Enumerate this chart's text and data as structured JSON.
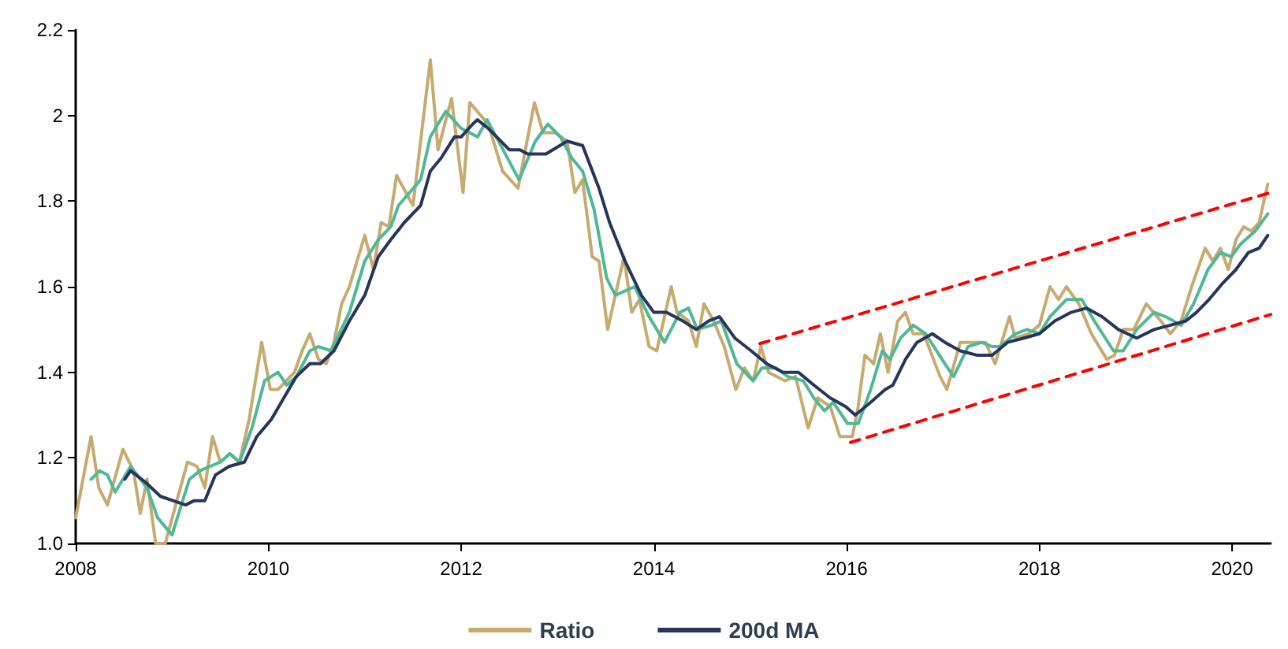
{
  "chart_data": {
    "type": "line",
    "xlim": [
      2008,
      2020.4
    ],
    "xticks": [
      2008,
      2010,
      2012,
      2014,
      2016,
      2018,
      2020
    ],
    "ylim": [
      1.0,
      2.2
    ],
    "yticks": [
      {
        "value": 1.0,
        "label": "1.0"
      },
      1.2,
      1.4,
      1.6,
      1.8,
      2,
      {
        "value": 2.2,
        "label": "2.2"
      }
    ],
    "grid": false,
    "legend": "bottom",
    "marker": "none",
    "series": [
      {
        "name": "Ratio",
        "color": "#c8aa6e",
        "x": [
          2008.0,
          2008.16,
          2008.24,
          2008.33,
          2008.49,
          2008.6,
          2008.67,
          2008.74,
          2008.83,
          2008.93,
          2009.05,
          2009.16,
          2009.26,
          2009.34,
          2009.42,
          2009.5,
          2009.6,
          2009.7,
          2009.8,
          2009.93,
          2010.02,
          2010.1,
          2010.27,
          2010.35,
          2010.43,
          2010.52,
          2010.6,
          2010.68,
          2010.76,
          2010.84,
          2011.0,
          2011.09,
          2011.17,
          2011.25,
          2011.33,
          2011.5,
          2011.68,
          2011.76,
          2011.9,
          2012.02,
          2012.09,
          2012.28,
          2012.43,
          2012.59,
          2012.76,
          2012.85,
          2012.97,
          2013.1,
          2013.18,
          2013.26,
          2013.36,
          2013.43,
          2013.52,
          2013.59,
          2013.69,
          2013.77,
          2013.85,
          2013.95,
          2014.03,
          2014.18,
          2014.24,
          2014.36,
          2014.44,
          2014.52,
          2014.62,
          2014.73,
          2014.85,
          2014.94,
          2015.03,
          2015.11,
          2015.19,
          2015.36,
          2015.47,
          2015.6,
          2015.7,
          2015.83,
          2015.93,
          2016.06,
          2016.12,
          2016.19,
          2016.28,
          2016.35,
          2016.43,
          2016.53,
          2016.61,
          2016.69,
          2016.8,
          2016.97,
          2017.04,
          2017.18,
          2017.35,
          2017.44,
          2017.54,
          2017.69,
          2017.75,
          2017.89,
          2018.0,
          2018.11,
          2018.2,
          2018.28,
          2018.41,
          2018.54,
          2018.7,
          2018.78,
          2018.87,
          2018.98,
          2019.11,
          2019.26,
          2019.36,
          2019.47,
          2019.58,
          2019.72,
          2019.8,
          2019.88,
          2019.96,
          2020.04,
          2020.12,
          2020.2,
          2020.28,
          2020.37
        ],
        "values": [
          1.06,
          1.25,
          1.13,
          1.09,
          1.22,
          1.17,
          1.07,
          1.15,
          1.0,
          1.0,
          1.1,
          1.19,
          1.18,
          1.13,
          1.25,
          1.19,
          1.21,
          1.19,
          1.29,
          1.47,
          1.36,
          1.36,
          1.4,
          1.45,
          1.49,
          1.43,
          1.42,
          1.47,
          1.56,
          1.6,
          1.72,
          1.64,
          1.75,
          1.74,
          1.86,
          1.79,
          2.13,
          1.92,
          2.04,
          1.82,
          2.03,
          1.98,
          1.87,
          1.83,
          2.03,
          1.96,
          1.96,
          1.94,
          1.82,
          1.85,
          1.67,
          1.66,
          1.5,
          1.57,
          1.67,
          1.54,
          1.57,
          1.46,
          1.45,
          1.6,
          1.54,
          1.52,
          1.46,
          1.56,
          1.52,
          1.46,
          1.36,
          1.41,
          1.38,
          1.46,
          1.4,
          1.38,
          1.39,
          1.27,
          1.34,
          1.32,
          1.25,
          1.25,
          1.32,
          1.44,
          1.42,
          1.49,
          1.4,
          1.52,
          1.54,
          1.49,
          1.49,
          1.39,
          1.36,
          1.47,
          1.47,
          1.47,
          1.42,
          1.53,
          1.48,
          1.49,
          1.51,
          1.6,
          1.57,
          1.6,
          1.56,
          1.49,
          1.43,
          1.44,
          1.5,
          1.5,
          1.56,
          1.52,
          1.49,
          1.52,
          1.6,
          1.69,
          1.66,
          1.69,
          1.64,
          1.71,
          1.74,
          1.73,
          1.75,
          1.84
        ]
      },
      {
        "color": "#4fb894",
        "x": [
          2008.16,
          2008.25,
          2008.33,
          2008.41,
          2008.57,
          2008.74,
          2008.85,
          2009.0,
          2009.18,
          2009.29,
          2009.5,
          2009.6,
          2009.7,
          2009.83,
          2009.96,
          2010.1,
          2010.19,
          2010.29,
          2010.43,
          2010.52,
          2010.65,
          2010.84,
          2011.0,
          2011.14,
          2011.27,
          2011.35,
          2011.58,
          2011.68,
          2011.84,
          2012.0,
          2012.17,
          2012.27,
          2012.6,
          2012.77,
          2012.9,
          2013.03,
          2013.15,
          2013.26,
          2013.38,
          2013.51,
          2013.6,
          2013.8,
          2013.95,
          2014.11,
          2014.27,
          2014.36,
          2014.45,
          2014.6,
          2014.7,
          2014.86,
          2015.03,
          2015.12,
          2015.27,
          2015.39,
          2015.55,
          2015.66,
          2015.77,
          2015.86,
          2016.01,
          2016.12,
          2016.25,
          2016.37,
          2016.45,
          2016.56,
          2016.69,
          2016.82,
          2017.02,
          2017.11,
          2017.26,
          2017.4,
          2017.51,
          2017.59,
          2017.75,
          2017.87,
          2018.0,
          2018.11,
          2018.28,
          2018.44,
          2018.57,
          2018.77,
          2018.87,
          2019.01,
          2019.19,
          2019.31,
          2019.47,
          2019.6,
          2019.75,
          2019.88,
          2019.99,
          2020.09,
          2020.24,
          2020.37
        ],
        "values": [
          1.15,
          1.17,
          1.16,
          1.12,
          1.18,
          1.13,
          1.06,
          1.02,
          1.15,
          1.17,
          1.19,
          1.21,
          1.19,
          1.27,
          1.38,
          1.4,
          1.37,
          1.39,
          1.45,
          1.46,
          1.45,
          1.54,
          1.66,
          1.71,
          1.74,
          1.79,
          1.85,
          1.95,
          2.01,
          1.97,
          1.95,
          1.99,
          1.85,
          1.94,
          1.98,
          1.95,
          1.9,
          1.87,
          1.78,
          1.62,
          1.58,
          1.6,
          1.53,
          1.47,
          1.54,
          1.55,
          1.5,
          1.51,
          1.52,
          1.42,
          1.38,
          1.41,
          1.41,
          1.39,
          1.38,
          1.34,
          1.31,
          1.33,
          1.28,
          1.28,
          1.36,
          1.45,
          1.43,
          1.48,
          1.51,
          1.49,
          1.42,
          1.39,
          1.46,
          1.47,
          1.46,
          1.46,
          1.49,
          1.5,
          1.49,
          1.53,
          1.57,
          1.57,
          1.52,
          1.45,
          1.45,
          1.5,
          1.54,
          1.53,
          1.51,
          1.56,
          1.64,
          1.68,
          1.67,
          1.7,
          1.73,
          1.77
        ]
      },
      {
        "name": "200d MA",
        "color": "#26355e",
        "x": [
          2008.51,
          2008.57,
          2008.74,
          2008.88,
          2009.01,
          2009.14,
          2009.23,
          2009.34,
          2009.45,
          2009.59,
          2009.75,
          2009.88,
          2010.03,
          2010.16,
          2010.29,
          2010.43,
          2010.54,
          2010.68,
          2010.84,
          2011.0,
          2011.14,
          2011.27,
          2011.41,
          2011.58,
          2011.68,
          2011.79,
          2011.93,
          2012.0,
          2012.12,
          2012.17,
          2012.28,
          2012.5,
          2012.61,
          2012.69,
          2012.88,
          2013.1,
          2013.26,
          2013.43,
          2013.54,
          2013.7,
          2013.87,
          2014.0,
          2014.13,
          2014.3,
          2014.44,
          2014.57,
          2014.68,
          2014.84,
          2015.01,
          2015.17,
          2015.34,
          2015.5,
          2015.66,
          2015.83,
          2015.99,
          2016.09,
          2016.25,
          2016.4,
          2016.48,
          2016.61,
          2016.73,
          2016.89,
          2017.02,
          2017.18,
          2017.35,
          2017.51,
          2017.67,
          2017.84,
          2018.0,
          2018.16,
          2018.33,
          2018.49,
          2018.65,
          2018.82,
          2019.01,
          2019.19,
          2019.36,
          2019.52,
          2019.63,
          2019.76,
          2019.91,
          2020.04,
          2020.17,
          2020.28,
          2020.37
        ],
        "values": [
          1.15,
          1.17,
          1.14,
          1.11,
          1.1,
          1.09,
          1.1,
          1.1,
          1.16,
          1.18,
          1.19,
          1.25,
          1.29,
          1.34,
          1.39,
          1.42,
          1.42,
          1.45,
          1.52,
          1.58,
          1.67,
          1.71,
          1.75,
          1.79,
          1.87,
          1.9,
          1.95,
          1.95,
          1.98,
          1.99,
          1.97,
          1.92,
          1.92,
          1.91,
          1.91,
          1.94,
          1.93,
          1.83,
          1.75,
          1.66,
          1.58,
          1.54,
          1.54,
          1.52,
          1.5,
          1.52,
          1.53,
          1.48,
          1.45,
          1.42,
          1.4,
          1.4,
          1.37,
          1.34,
          1.32,
          1.3,
          1.33,
          1.36,
          1.37,
          1.43,
          1.47,
          1.49,
          1.47,
          1.45,
          1.44,
          1.44,
          1.47,
          1.48,
          1.49,
          1.52,
          1.54,
          1.55,
          1.53,
          1.5,
          1.48,
          1.5,
          1.51,
          1.52,
          1.54,
          1.57,
          1.61,
          1.64,
          1.68,
          1.69,
          1.72
        ]
      },
      {
        "color": "#ff0000",
        "line_style": "dashed",
        "x": [
          2015.1,
          2020.4
        ],
        "values": [
          1.467,
          1.82
        ]
      },
      {
        "color": "#ff0000",
        "line_style": "dashed",
        "x": [
          2016.04,
          2020.4
        ],
        "values": [
          1.236,
          1.535
        ]
      }
    ]
  }
}
